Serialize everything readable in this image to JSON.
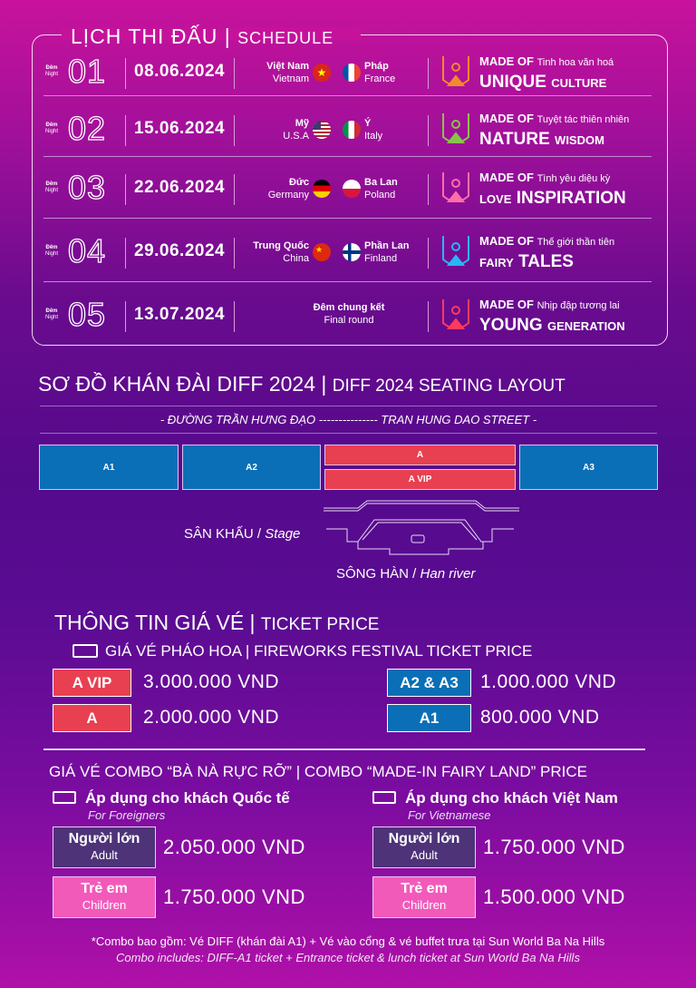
{
  "schedule": {
    "title": "LỊCH THI ĐẤU",
    "title_sep": "|",
    "subtitle": "SCHEDULE",
    "night_vi": "Đêm",
    "night_en": "Night",
    "rows": [
      {
        "num": "01",
        "date": "08.06.2024",
        "team1_vi": "Việt Nam",
        "team1_en": "Vietnam",
        "team2_vi": "Pháp",
        "team2_en": "France",
        "made_of": "MADE OF",
        "theme_vi": "Tinh hoa văn hoá",
        "theme_big": "UNIQUE",
        "theme_small": "CULTURE",
        "logo_color": "#f08a2a"
      },
      {
        "num": "02",
        "date": "15.06.2024",
        "team1_vi": "Mỹ",
        "team1_en": "U.S.A",
        "team2_vi": "Ý",
        "team2_en": "Italy",
        "made_of": "MADE OF",
        "theme_vi": "Tuyệt tác thiên nhiên",
        "theme_big": "NATURE",
        "theme_small": "WISDOM",
        "logo_color": "#8bc34a"
      },
      {
        "num": "03",
        "date": "22.06.2024",
        "team1_vi": "Đức",
        "team1_en": "Germany",
        "team2_vi": "Ba Lan",
        "team2_en": "Poland",
        "made_of": "MADE OF",
        "theme_vi": "Tình yêu diệu kỳ",
        "theme_small": "LOVE",
        "theme_big": "INSPIRATION",
        "logo_color": "#ff6fa8"
      },
      {
        "num": "04",
        "date": "29.06.2024",
        "team1_vi": "Trung Quốc",
        "team1_en": "China",
        "team2_vi": "Phần Lan",
        "team2_en": "Finland",
        "made_of": "MADE OF",
        "theme_vi": "Thế giới thần tiên",
        "theme_small": "FAIRY",
        "theme_big": "TALES",
        "logo_color": "#29b6f6"
      },
      {
        "num": "05",
        "date": "13.07.2024",
        "final_vi": "Đêm chung kết",
        "final_en": "Final round",
        "made_of": "MADE OF",
        "theme_vi": "Nhịp đập tương lai",
        "theme_big": "YOUNG",
        "theme_small": "GENERATION",
        "logo_color": "#ff3b5c"
      }
    ]
  },
  "seating": {
    "title": "SƠ ĐỒ KHÁN ĐÀI DIFF 2024",
    "sep": "|",
    "subtitle": "DIFF 2024 SEATING LAYOUT",
    "street": "- ĐƯỜNG TRẦN HƯNG ĐẠO --------------- TRAN HUNG DAO STREET -",
    "sections": {
      "a1": "A1",
      "a2": "A2",
      "a": "A",
      "avip": "A VIP",
      "a3": "A3"
    },
    "stage_vi": "SÂN KHẤU /",
    "stage_en": "Stage",
    "river_vi": "SÔNG HÀN /",
    "river_en": "Han river"
  },
  "tickets": {
    "title": "THÔNG TIN GIÁ VÉ",
    "sep": "|",
    "subtitle": "TICKET PRICE",
    "fireworks_heading": "GIÁ VÉ PHÁO HOA | FIREWORKS FESTIVAL TICKET PRICE",
    "prices": [
      {
        "label": "A VIP",
        "price": "3.000.000 VND",
        "color": "#e84050"
      },
      {
        "label": "A",
        "price": "2.000.000 VND",
        "color": "#e84050"
      },
      {
        "label": "A2 & A3",
        "price": "1.000.000 VND",
        "color": "#0a6fb6"
      },
      {
        "label": "A1",
        "price": "800.000 VND",
        "color": "#0a6fb6"
      }
    ]
  },
  "combo": {
    "title": "GIÁ VÉ COMBO “BÀ NÀ RỰC RỠ” | COMBO “MADE-IN FAIRY LAND” PRICE",
    "groups": [
      {
        "heading": "Áp dụng cho khách Quốc tế",
        "sub": "For Foreigners",
        "adult_vi": "Người lớn",
        "adult_en": "Adult",
        "adult_price": "2.050.000 VND",
        "child_vi": "Trẻ em",
        "child_en": "Children",
        "child_price": "1.750.000 VND"
      },
      {
        "heading": "Áp dụng cho khách Việt Nam",
        "sub": "For Vietnamese",
        "adult_vi": "Người lớn",
        "adult_en": "Adult",
        "adult_price": "1.750.000 VND",
        "child_vi": "Trẻ em",
        "child_en": "Children",
        "child_price": "1.500.000 VND"
      }
    ],
    "note_vi": "*Combo bao gồm: Vé DIFF (khán đài A1) + Vé vào cổng & vé buffet trưa tại Sun World Ba Na Hills",
    "note_en": "Combo includes: DIFF-A1 ticket + Entrance ticket & lunch ticket at Sun World Ba Na Hills"
  }
}
